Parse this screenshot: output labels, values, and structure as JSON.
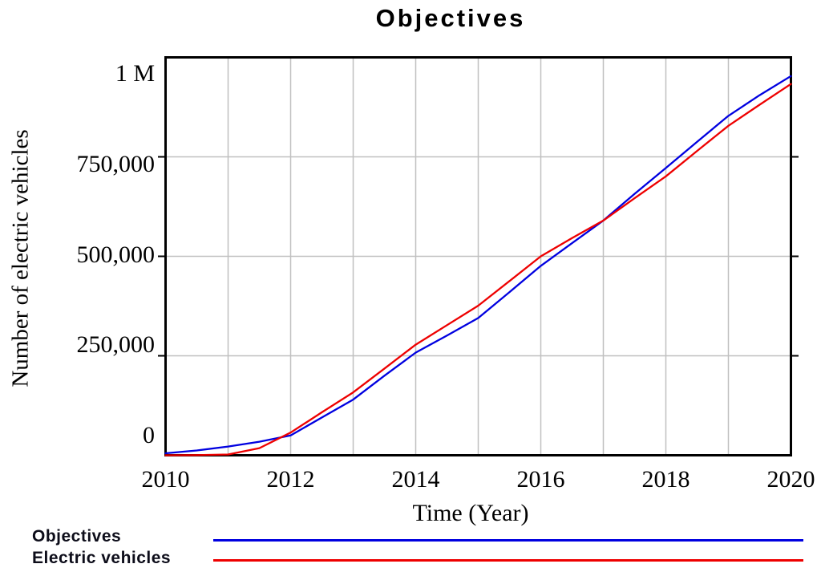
{
  "chart_data": {
    "type": "line",
    "title": "Objectives",
    "xlabel": "Time (Year)",
    "ylabel": "Number of electric vehicles",
    "xlim": [
      2010,
      2020
    ],
    "ylim": [
      0,
      1000000
    ],
    "grid": true,
    "legend_position": "bottom-left",
    "x_tick_labels": [
      "2010",
      "2012",
      "2014",
      "2016",
      "2018",
      "2020"
    ],
    "x_tick_values": [
      2010,
      2012,
      2014,
      2016,
      2018,
      2020
    ],
    "x_gridline_years": [
      2011,
      2012,
      2013,
      2014,
      2015,
      2016,
      2017,
      2018,
      2019
    ],
    "y_tick_labels": [
      "1 M",
      "750,000",
      "500,000",
      "250,000",
      "0"
    ],
    "y_gridline_values": [
      250000,
      500000,
      750000
    ],
    "colors": {
      "axis": "#000000",
      "grid": "#c0c0c0",
      "background": "#ffffff"
    },
    "x": [
      2010,
      2010.5,
      2011,
      2011.5,
      2012,
      2012.5,
      2013,
      2013.5,
      2014,
      2014.5,
      2015,
      2015.5,
      2016,
      2016.5,
      2017,
      2017.5,
      2018,
      2018.5,
      2019,
      2019.5,
      2020
    ],
    "series": [
      {
        "name": "Objectives",
        "color": "#0000e0",
        "values": [
          5000,
          12000,
          22000,
          34000,
          50000,
          95000,
          140000,
          200000,
          258000,
          301000,
          345000,
          410000,
          476000,
          533000,
          590000,
          657000,
          722000,
          788000,
          853000,
          905000,
          953000
        ]
      },
      {
        "name": "Electric vehicles",
        "color": "#ee0000",
        "values": [
          0,
          500,
          2000,
          18000,
          57000,
          108000,
          158000,
          218000,
          278000,
          327000,
          376000,
          438000,
          500000,
          546000,
          590000,
          646000,
          701000,
          765000,
          828000,
          881000,
          933000
        ]
      }
    ]
  }
}
